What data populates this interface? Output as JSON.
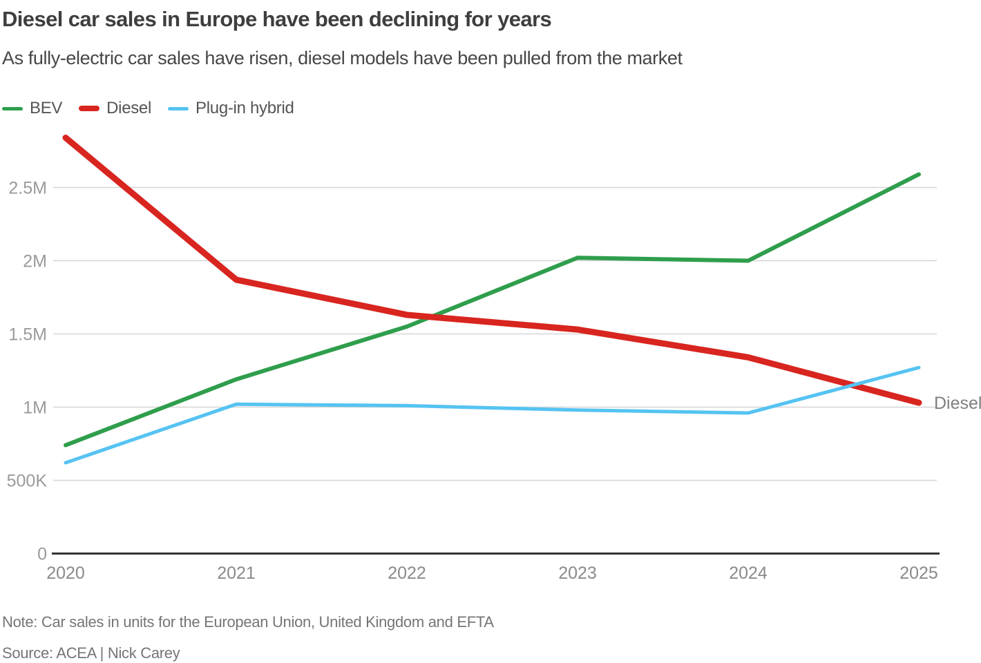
{
  "header": {
    "title": "Diesel car sales in Europe have been declining for years",
    "subtitle": "As fully-electric car sales have risen, diesel models have been pulled from the market"
  },
  "legend": [
    {
      "label": "BEV",
      "color": "#2f9e4c",
      "thickness": 5
    },
    {
      "label": "Diesel",
      "color": "#d8251f",
      "thickness": 8
    },
    {
      "label": "Plug-in hybrid",
      "color": "#55c3f2",
      "thickness": 5
    }
  ],
  "chart_data": {
    "type": "line",
    "title": "Diesel car sales in Europe have been declining for years",
    "subtitle": "As fully-electric car sales have risen, diesel models have been pulled from the market",
    "x": [
      "2020",
      "2021",
      "2022",
      "2023",
      "2024",
      "2025"
    ],
    "series": [
      {
        "name": "BEV",
        "color": "#2f9e4c",
        "line_width": 6,
        "values_millions": [
          0.74,
          1.19,
          1.55,
          2.02,
          2.0,
          2.59
        ]
      },
      {
        "name": "Diesel",
        "color": "#d8251f",
        "line_width": 9,
        "end_label": "Diesel",
        "values_millions": [
          2.84,
          1.87,
          1.63,
          1.53,
          1.34,
          1.03
        ]
      },
      {
        "name": "Plug-in hybrid",
        "color": "#55c3f2",
        "line_width": 5,
        "values_millions": [
          0.62,
          1.02,
          1.01,
          0.98,
          0.96,
          1.27
        ]
      }
    ],
    "xlabel": "",
    "ylabel": "",
    "ylim_millions": [
      0,
      2.9
    ],
    "y_ticks": [
      {
        "value": 0,
        "label": "0"
      },
      {
        "value": 0.5,
        "label": "500K"
      },
      {
        "value": 1,
        "label": "1M"
      },
      {
        "value": 1.5,
        "label": "1.5M"
      },
      {
        "value": 2,
        "label": "2M"
      },
      {
        "value": 2.5,
        "label": "2.5M"
      }
    ],
    "grid": "horizontal",
    "legend_position": "top-left",
    "colors": {
      "gridline": "#d6d6d6",
      "axis_line": "#333333",
      "y_tick_label": "#9a9a9a",
      "x_tick_label": "#8a8a8a",
      "end_label": "#7f7f7f"
    }
  },
  "footer": {
    "note": "Note: Car sales in units for the European Union, United Kingdom and EFTA",
    "source": "Source: ACEA | Nick Carey"
  }
}
